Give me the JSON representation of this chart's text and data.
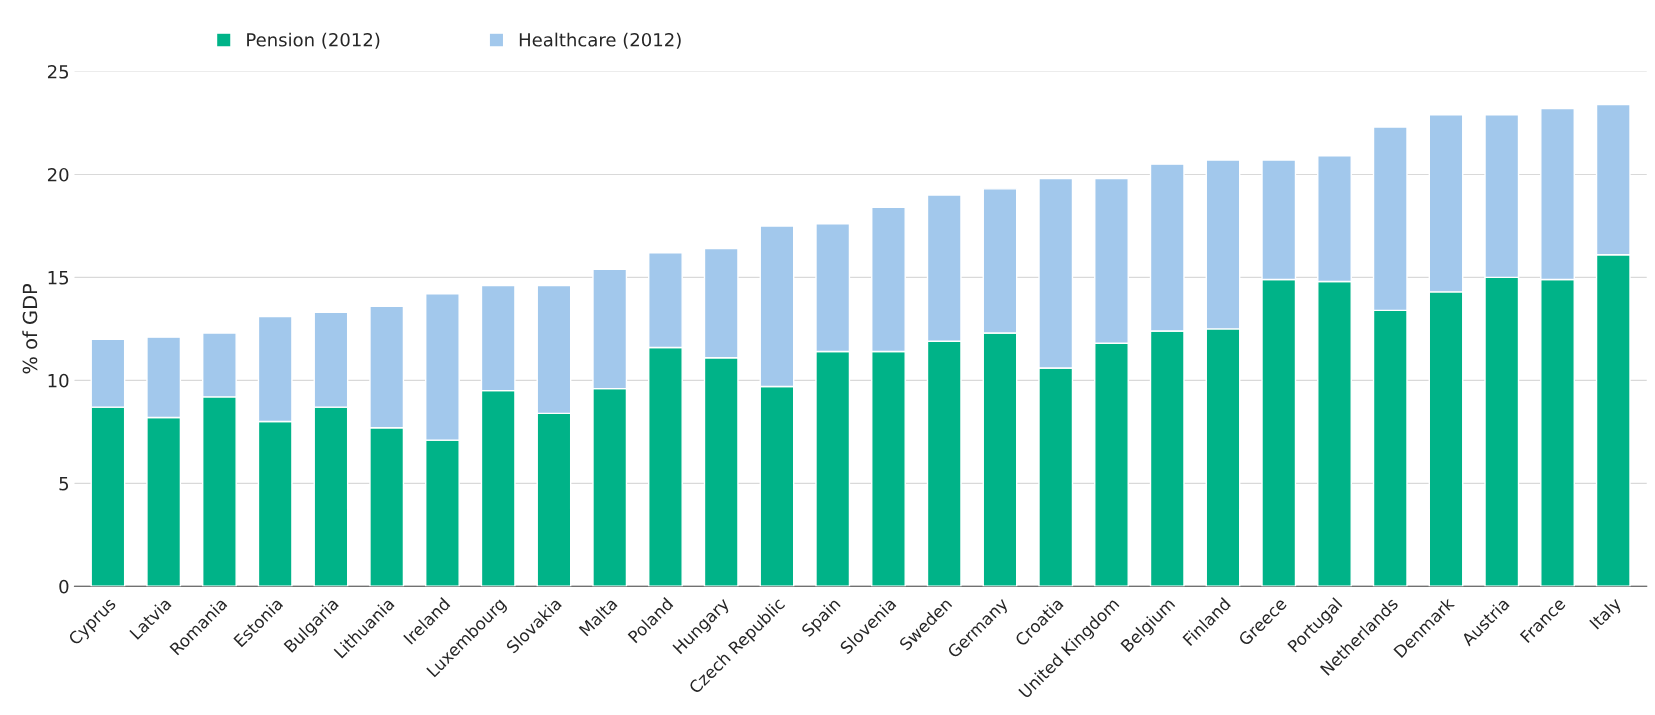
{
  "chart_data": {
    "type": "bar",
    "stacked": true,
    "ylabel": "% of GDP",
    "categories": [
      "Cyprus",
      "Latvia",
      "Romania",
      "Estonia",
      "Bulgaria",
      "Lithuania",
      "Ireland",
      "Luxembourg",
      "Slovakia",
      "Malta",
      "Poland",
      "Hungary",
      "Czech Republic",
      "Spain",
      "Slovenia",
      "Sweden",
      "Germany",
      "Croatia",
      "United Kingdom",
      "Belgium",
      "Finland",
      "Greece",
      "Portugal",
      "Netherlands",
      "Denmark",
      "Austria",
      "France",
      "Italy"
    ],
    "series": [
      {
        "name": "Pension (2012)",
        "color": "#00b388",
        "values": [
          8.7,
          8.2,
          9.2,
          8.0,
          8.7,
          7.7,
          7.1,
          9.5,
          8.4,
          9.6,
          11.6,
          11.1,
          9.7,
          11.4,
          11.4,
          11.9,
          12.3,
          10.6,
          11.8,
          12.4,
          12.5,
          14.9,
          14.8,
          13.4,
          14.3,
          15.0,
          14.9,
          16.1
        ]
      },
      {
        "name": "Healthcare (2012)",
        "color": "#a2c8ec",
        "values": [
          3.3,
          3.9,
          3.1,
          5.1,
          4.6,
          5.9,
          7.1,
          5.1,
          6.2,
          5.8,
          4.6,
          5.3,
          7.8,
          6.2,
          7.0,
          7.1,
          7.0,
          9.2,
          8.0,
          8.1,
          8.2,
          5.8,
          6.1,
          8.9,
          8.6,
          7.9,
          8.3,
          7.3
        ]
      }
    ],
    "ylim": [
      0,
      25
    ],
    "yticks": [
      0,
      5,
      10,
      15,
      20,
      25
    ],
    "grid": "y",
    "legend": "top left"
  }
}
